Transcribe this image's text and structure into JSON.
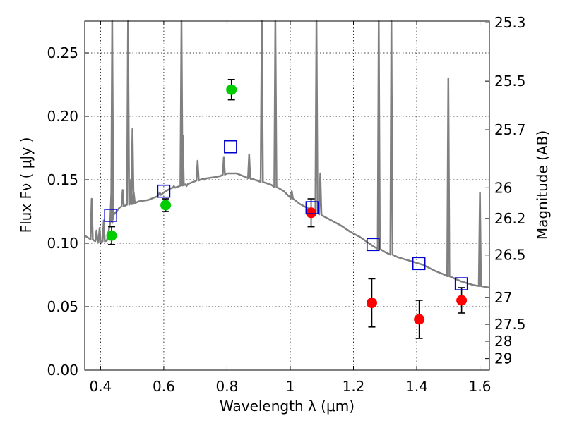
{
  "chart_data": {
    "type": "scatter",
    "xlabel": "Wavelength  λ (μm)",
    "ylabel": "Flux  Fν  ( μJy )",
    "ylabel_right": "Magnitude (AB)",
    "xlim": [
      0.35,
      1.63
    ],
    "ylim": [
      0.0,
      0.275
    ],
    "grid": true,
    "x_ticks": [
      0.4,
      0.6,
      0.8,
      1.0,
      1.2,
      1.4,
      1.6
    ],
    "x_tick_labels": [
      "0.4",
      "0.6",
      "0.8",
      "1",
      "1.2",
      "1.4",
      "1.6"
    ],
    "y_ticks": [
      0.0,
      0.05,
      0.1,
      0.15,
      0.2,
      0.25
    ],
    "y_tick_labels": [
      "0.00",
      "0.05",
      "0.10",
      "0.15",
      "0.20",
      "0.25"
    ],
    "right_ticks": [
      {
        "label": "25.3",
        "flux": 0.2738
      },
      {
        "label": "25.5",
        "flux": 0.2277
      },
      {
        "label": "25.7",
        "flux": 0.1894
      },
      {
        "label": "26",
        "flux": 0.1437
      },
      {
        "label": "26.2",
        "flux": 0.1195
      },
      {
        "label": "26.5",
        "flux": 0.0907
      },
      {
        "label": "27",
        "flux": 0.0573
      },
      {
        "label": "27.5",
        "flux": 0.0361
      },
      {
        "label": "28",
        "flux": 0.0228
      },
      {
        "label": "29",
        "flux": 0.0091
      }
    ],
    "series": [
      {
        "marker": "circle",
        "color": "#00cc00",
        "points": [
          {
            "x": 0.435,
            "y": 0.106,
            "err": 0.007
          },
          {
            "x": 0.606,
            "y": 0.13,
            "err": 0.005
          },
          {
            "x": 0.814,
            "y": 0.221,
            "err": 0.008
          }
        ]
      },
      {
        "marker": "circle",
        "color": "#ff0000",
        "points": [
          {
            "x": 1.066,
            "y": 0.124,
            "err": 0.011
          },
          {
            "x": 1.258,
            "y": 0.053,
            "err": 0.019
          },
          {
            "x": 1.408,
            "y": 0.04,
            "err": 0.015
          },
          {
            "x": 1.542,
            "y": 0.055,
            "err": 0.01
          }
        ]
      },
      {
        "marker": "open-square",
        "color": "#0000cc",
        "points": [
          {
            "x": 0.432,
            "y": 0.122
          },
          {
            "x": 0.6,
            "y": 0.141
          },
          {
            "x": 0.811,
            "y": 0.176
          },
          {
            "x": 1.069,
            "y": 0.128
          },
          {
            "x": 1.262,
            "y": 0.099
          },
          {
            "x": 1.407,
            "y": 0.084
          },
          {
            "x": 1.541,
            "y": 0.068
          }
        ]
      }
    ],
    "model_spectrum": {
      "color": "#808080",
      "continuum": [
        [
          0.35,
          0.106
        ],
        [
          0.38,
          0.102
        ],
        [
          0.4,
          0.101
        ],
        [
          0.42,
          0.102
        ],
        [
          0.44,
          0.122
        ],
        [
          0.46,
          0.128
        ],
        [
          0.48,
          0.13
        ],
        [
          0.5,
          0.131
        ],
        [
          0.52,
          0.133
        ],
        [
          0.55,
          0.134
        ],
        [
          0.58,
          0.137
        ],
        [
          0.6,
          0.14
        ],
        [
          0.62,
          0.143
        ],
        [
          0.65,
          0.145
        ],
        [
          0.68,
          0.147
        ],
        [
          0.7,
          0.149
        ],
        [
          0.73,
          0.151
        ],
        [
          0.76,
          0.152
        ],
        [
          0.78,
          0.153
        ],
        [
          0.8,
          0.155
        ],
        [
          0.83,
          0.155
        ],
        [
          0.86,
          0.152
        ],
        [
          0.9,
          0.149
        ],
        [
          0.94,
          0.146
        ],
        [
          0.98,
          0.141
        ],
        [
          1.0,
          0.136
        ],
        [
          1.03,
          0.131
        ],
        [
          1.06,
          0.127
        ],
        [
          1.1,
          0.122
        ],
        [
          1.13,
          0.118
        ],
        [
          1.16,
          0.114
        ],
        [
          1.19,
          0.109
        ],
        [
          1.22,
          0.105
        ],
        [
          1.26,
          0.098
        ],
        [
          1.3,
          0.093
        ],
        [
          1.34,
          0.089
        ],
        [
          1.38,
          0.086
        ],
        [
          1.42,
          0.083
        ],
        [
          1.46,
          0.078
        ],
        [
          1.5,
          0.074
        ],
        [
          1.54,
          0.07
        ],
        [
          1.58,
          0.067
        ],
        [
          1.63,
          0.065
        ]
      ],
      "emission_lines": [
        [
          0.372,
          0.135
        ],
        [
          0.387,
          0.11
        ],
        [
          0.397,
          0.112
        ],
        [
          0.41,
          0.118
        ],
        [
          0.434,
          0.14
        ],
        [
          0.437,
          0.275
        ],
        [
          0.47,
          0.142
        ],
        [
          0.487,
          0.275
        ],
        [
          0.496,
          0.15
        ],
        [
          0.501,
          0.19
        ],
        [
          0.505,
          0.14
        ],
        [
          0.587,
          0.14
        ],
        [
          0.632,
          0.145
        ],
        [
          0.656,
          0.275
        ],
        [
          0.66,
          0.185
        ],
        [
          0.672,
          0.145
        ],
        [
          0.707,
          0.165
        ],
        [
          0.728,
          0.15
        ],
        [
          0.79,
          0.168
        ],
        [
          0.87,
          0.17
        ],
        [
          0.91,
          0.275
        ],
        [
          0.953,
          0.275
        ],
        [
          1.005,
          0.141
        ],
        [
          1.083,
          0.275
        ],
        [
          1.095,
          0.155
        ],
        [
          1.28,
          0.275
        ],
        [
          1.32,
          0.275
        ],
        [
          1.5,
          0.23
        ],
        [
          1.6,
          0.14
        ]
      ]
    }
  }
}
